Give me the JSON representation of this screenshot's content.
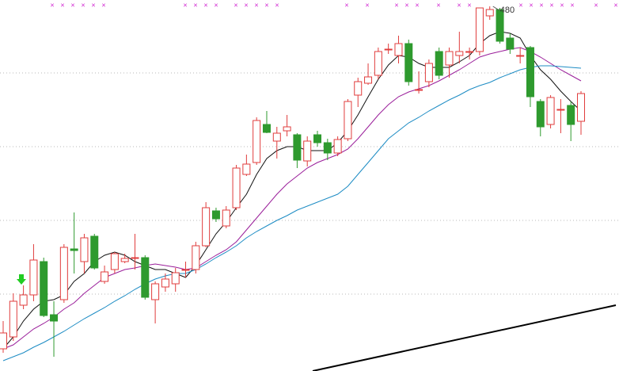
{
  "chart_data": {
    "type": "candlestick",
    "ylim": [
      20,
      488
    ],
    "up_color": "#e03c3c",
    "down_color": "#2e9a2e",
    "open": [
      48,
      63,
      103,
      116,
      158,
      91,
      110,
      174,
      158,
      190,
      133,
      148,
      158,
      163,
      163,
      110,
      126,
      130,
      148,
      148,
      178,
      222,
      203,
      226,
      268,
      283,
      331,
      310,
      323,
      318,
      285,
      318,
      308,
      295,
      313,
      368,
      383,
      393,
      426,
      418,
      433,
      375,
      385,
      423,
      406,
      418,
      423,
      423,
      468,
      476,
      440,
      418,
      428,
      360,
      331,
      350,
      355,
      335
    ],
    "close": [
      68,
      108,
      116,
      160,
      90,
      83,
      176,
      172,
      188,
      150,
      145,
      168,
      162,
      163,
      113,
      130,
      136,
      144,
      148,
      178,
      226,
      212,
      223,
      276,
      281,
      336,
      321,
      320,
      328,
      286,
      310,
      308,
      295,
      312,
      360,
      385,
      391,
      423,
      426,
      433,
      385,
      375,
      408,
      393,
      423,
      423,
      423,
      478,
      476,
      436,
      426,
      418,
      366,
      328,
      365,
      350,
      331,
      370
    ],
    "high": [
      83,
      118,
      128,
      180,
      163,
      108,
      180,
      220,
      193,
      193,
      153,
      170,
      168,
      193,
      166,
      133,
      143,
      150,
      158,
      183,
      233,
      226,
      228,
      280,
      293,
      340,
      348,
      328,
      343,
      320,
      316,
      323,
      313,
      316,
      363,
      390,
      408,
      428,
      433,
      443,
      438,
      398,
      413,
      428,
      428,
      448,
      428,
      478.21,
      480,
      478,
      446,
      428,
      430,
      363,
      368,
      363,
      360,
      373
    ],
    "low": [
      43,
      58,
      98,
      108,
      88,
      38,
      106,
      143,
      143,
      148,
      130,
      143,
      156,
      148,
      110,
      80,
      120,
      120,
      138,
      143,
      176,
      208,
      200,
      223,
      266,
      280,
      320,
      288,
      316,
      276,
      278,
      303,
      286,
      291,
      310,
      353,
      381,
      388,
      420,
      408,
      380,
      370,
      378,
      388,
      390,
      408,
      413,
      418,
      463,
      433,
      420,
      408,
      353,
      316,
      326,
      320,
      310,
      318
    ],
    "lines": [
      {
        "color": "#111111",
        "values": [
          48,
          63,
          83,
          98,
          108,
          110,
          116,
          133,
          143,
          158,
          166,
          170,
          166,
          158,
          153,
          148,
          148,
          143,
          138,
          153,
          173,
          193,
          208,
          226,
          243,
          268,
          288,
          298,
          303,
          303,
          298,
          298,
          298,
          308,
          323,
          343,
          366,
          388,
          406,
          418,
          416,
          408,
          403,
          403,
          403,
          410,
          418,
          433,
          443,
          448,
          446,
          440,
          418,
          400,
          388,
          373,
          360,
          348
        ]
      },
      {
        "color": "#9a1e9a",
        "values": [
          48,
          53,
          63,
          73,
          80,
          88,
          98,
          106,
          118,
          128,
          138,
          143,
          148,
          150,
          153,
          155,
          153,
          151,
          148,
          150,
          158,
          166,
          173,
          183,
          198,
          213,
          228,
          243,
          256,
          266,
          276,
          283,
          288,
          293,
          300,
          313,
          328,
          343,
          356,
          366,
          372,
          376,
          380,
          386,
          393,
          400,
          408,
          416,
          420,
          423,
          426,
          428,
          423,
          416,
          408,
          400,
          393,
          386
        ]
      },
      {
        "color": "#1d8cc4",
        "values": [
          33,
          38,
          43,
          50,
          56,
          63,
          70,
          78,
          86,
          93,
          100,
          108,
          115,
          123,
          130,
          136,
          140,
          143,
          143,
          148,
          155,
          163,
          170,
          178,
          188,
          196,
          203,
          210,
          216,
          223,
          228,
          233,
          238,
          243,
          253,
          268,
          283,
          298,
          313,
          323,
          333,
          340,
          348,
          355,
          362,
          368,
          375,
          380,
          384,
          390,
          395,
          400,
          403,
          405,
          405,
          404,
          403,
          402
        ]
      }
    ]
  }
}
